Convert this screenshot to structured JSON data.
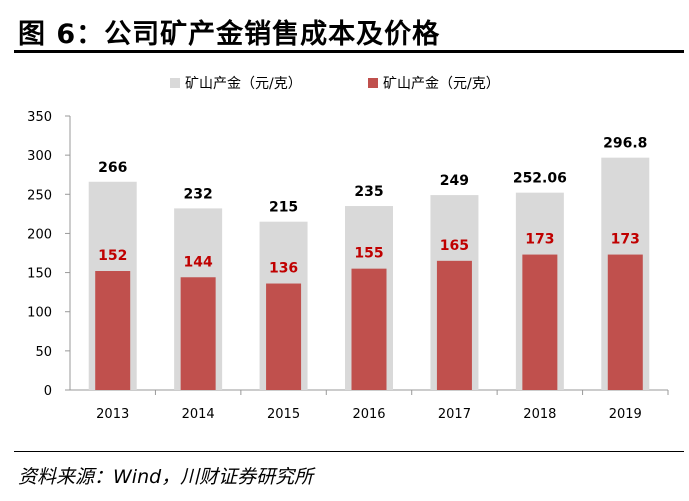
{
  "title": {
    "prefix": "图  6：",
    "text": "公司矿产金销售成本及价格"
  },
  "source": "资料来源：Wind，川财证券研究所",
  "colors": {
    "price": "#d9d9d9",
    "cost": "#c0504d",
    "cost_label": "#c00000",
    "axis": "#999999"
  },
  "chart_data": {
    "type": "bar",
    "categories": [
      "2013",
      "2014",
      "2015",
      "2016",
      "2017",
      "2018",
      "2019"
    ],
    "series": [
      {
        "name": "矿山产金（元/克）",
        "values": [
          266,
          232,
          215,
          235,
          249,
          252.06,
          296.8
        ],
        "labels": [
          "266",
          "232",
          "215",
          "235",
          "249",
          "252.06",
          "296.8"
        ]
      },
      {
        "name": "矿山产金（元/克）",
        "values": [
          152,
          144,
          136,
          155,
          165,
          173,
          173
        ],
        "labels": [
          "152",
          "144",
          "136",
          "155",
          "165",
          "173",
          "173"
        ]
      }
    ],
    "yticks": [
      "0",
      "50",
      "100",
      "150",
      "200",
      "250",
      "300",
      "350"
    ],
    "ylim": [
      0,
      350
    ],
    "overlap": true,
    "legend": "top"
  }
}
